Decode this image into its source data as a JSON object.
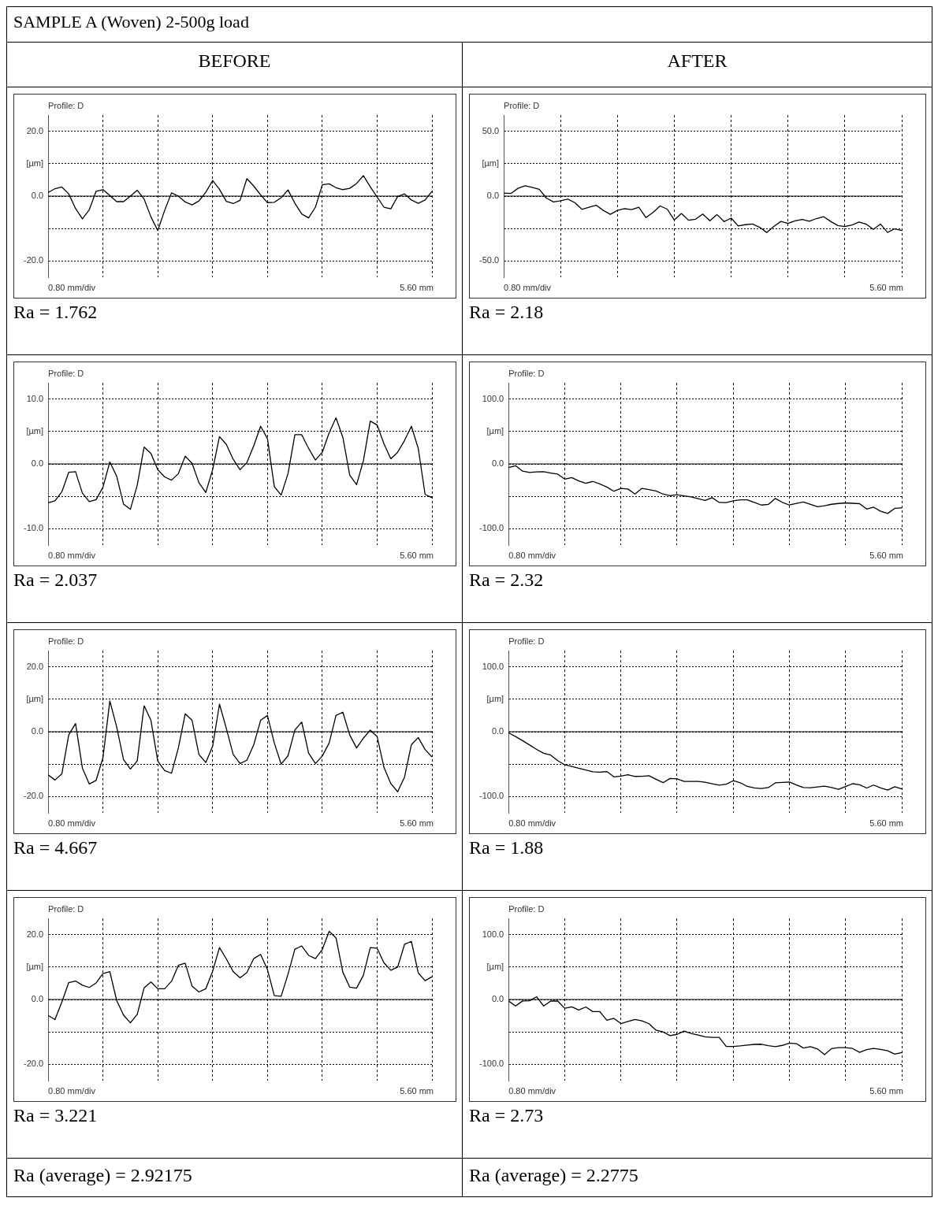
{
  "chart_data": [
    {
      "type": "other",
      "title": "SAMPLE A (Woven) 2-500g load",
      "annotations": [
        "BEFORE",
        "AFTER"
      ]
    },
    {
      "type": "line",
      "title": "Profile: D",
      "xlabel": "0.80 mm/div",
      "ylabel": "[µm]",
      "annotations": [
        "5.60 mm",
        "Ra = 1.762"
      ],
      "tick_labels": "y",
      "ylim": [
        -25,
        25
      ],
      "yticks": [
        {
          "value": 20,
          "label": "20.0"
        },
        {
          "value": 10,
          "label": null
        },
        {
          "value": 0,
          "label": "0.0"
        },
        {
          "value": -10,
          "label": null
        },
        {
          "value": -20,
          "label": "-20.0"
        }
      ],
      "grid": true,
      "ref_lines": [
        {
          "axis": "y",
          "value": 0,
          "color": "#000000"
        }
      ],
      "categories": [
        null,
        null,
        null,
        null,
        null,
        null,
        null,
        null,
        null,
        null,
        null,
        null,
        null,
        null,
        null,
        null,
        null,
        null,
        null,
        null,
        null,
        null,
        null,
        null,
        null,
        null,
        null,
        null,
        null,
        null,
        null,
        null,
        null,
        null,
        null,
        null,
        null,
        null,
        null,
        null,
        null,
        null,
        null,
        null,
        null,
        null,
        null,
        null,
        null,
        null,
        null,
        null,
        null,
        null,
        null,
        null,
        null
      ],
      "series": [
        {
          "color": "#000000",
          "values": [
            1.1,
            2.3,
            2.8,
            0.7,
            -3.8,
            -7.0,
            -4.2,
            1.5,
            2.0,
            0.2,
            -1.7,
            -1.7,
            0.0,
            1.8,
            -0.9,
            -6.4,
            -10.6,
            -4.4,
            1.0,
            0.0,
            -1.8,
            -2.7,
            -1.5,
            1.2,
            4.8,
            2.1,
            -1.6,
            -2.3,
            -1.3,
            5.4,
            3.1,
            0.4,
            -2.0,
            -1.9,
            -0.5,
            1.9,
            -2.2,
            -5.5,
            -6.7,
            -3.4,
            3.5,
            3.8,
            2.6,
            2.0,
            2.4,
            3.9,
            6.3,
            2.9,
            -0.3,
            -3.4,
            -3.9,
            -0.1,
            0.7,
            -1.2,
            -2.2,
            -1.2,
            1.5
          ]
        }
      ]
    },
    {
      "type": "line",
      "title": "Profile: D",
      "xlabel": "0.80 mm/div",
      "ylabel": "[µm]",
      "annotations": [
        "5.60 mm",
        "Ra = 2.18"
      ],
      "tick_labels": "y",
      "ylim": [
        -62.5,
        62.5
      ],
      "yticks": [
        {
          "value": 50,
          "label": "50.0"
        },
        {
          "value": 25,
          "label": null
        },
        {
          "value": 0,
          "label": "0.0"
        },
        {
          "value": -25,
          "label": null
        },
        {
          "value": -50,
          "label": "-50.0"
        }
      ],
      "grid": true,
      "ref_lines": [
        {
          "axis": "y",
          "value": 0,
          "color": "#000000"
        }
      ],
      "categories": [
        null,
        null,
        null,
        null,
        null,
        null,
        null,
        null,
        null,
        null,
        null,
        null,
        null,
        null,
        null,
        null,
        null,
        null,
        null,
        null,
        null,
        null,
        null,
        null,
        null,
        null,
        null,
        null,
        null,
        null,
        null,
        null,
        null,
        null,
        null,
        null,
        null,
        null,
        null,
        null,
        null,
        null,
        null,
        null,
        null,
        null,
        null,
        null,
        null,
        null,
        null,
        null,
        null,
        null,
        null,
        null,
        null
      ],
      "series": [
        {
          "color": "#000000",
          "values": [
            2.3,
            2.0,
            6.0,
            8.0,
            6.8,
            5.2,
            -1.5,
            -4.5,
            -3.5,
            -2.3,
            -5.0,
            -10.2,
            -8.6,
            -7.0,
            -11.0,
            -14.0,
            -11.0,
            -9.7,
            -10.4,
            -8.6,
            -16.5,
            -12.6,
            -7.6,
            -10.0,
            -18.4,
            -13.4,
            -18.6,
            -17.8,
            -13.8,
            -19.0,
            -14.2,
            -19.6,
            -17.0,
            -23.0,
            -22.0,
            -21.5,
            -24.0,
            -28.0,
            -23.4,
            -19.5,
            -21.0,
            -19.0,
            -18.0,
            -19.3,
            -17.3,
            -15.8,
            -19.5,
            -22.7,
            -23.5,
            -22.2,
            -19.9,
            -21.6,
            -25.6,
            -21.5,
            -28.0,
            -25.2,
            -26.5
          ]
        }
      ]
    },
    {
      "type": "line",
      "title": "Profile: D",
      "xlabel": "0.80 mm/div",
      "ylabel": "[µm]",
      "annotations": [
        "5.60 mm",
        "Ra = 2.037"
      ],
      "tick_labels": "y",
      "ylim": [
        -12.5,
        12.5
      ],
      "yticks": [
        {
          "value": 10,
          "label": "10.0"
        },
        {
          "value": 5,
          "label": null
        },
        {
          "value": 0,
          "label": "0.0"
        },
        {
          "value": -5,
          "label": null
        },
        {
          "value": -10,
          "label": "-10.0"
        }
      ],
      "grid": true,
      "ref_lines": [
        {
          "axis": "y",
          "value": 0,
          "color": "#000000"
        }
      ],
      "categories": [
        null,
        null,
        null,
        null,
        null,
        null,
        null,
        null,
        null,
        null,
        null,
        null,
        null,
        null,
        null,
        null,
        null,
        null,
        null,
        null,
        null,
        null,
        null,
        null,
        null,
        null,
        null,
        null,
        null,
        null,
        null,
        null,
        null,
        null,
        null,
        null,
        null,
        null,
        null,
        null,
        null,
        null,
        null,
        null,
        null,
        null,
        null,
        null,
        null,
        null,
        null,
        null,
        null,
        null,
        null,
        null,
        null
      ],
      "series": [
        {
          "color": "#000000",
          "values": [
            -6.0,
            -5.7,
            -4.3,
            -1.3,
            -1.2,
            -4.5,
            -5.8,
            -5.5,
            -3.6,
            0.3,
            -1.9,
            -6.2,
            -7.0,
            -3.3,
            2.6,
            1.6,
            -0.9,
            -2.0,
            -2.5,
            -1.5,
            1.2,
            0.1,
            -2.9,
            -4.4,
            -0.9,
            4.2,
            3.0,
            0.7,
            -0.9,
            0.2,
            2.8,
            5.8,
            3.9,
            -3.5,
            -4.8,
            -1.5,
            4.5,
            4.5,
            2.4,
            0.6,
            1.8,
            4.8,
            7.1,
            4.1,
            -1.7,
            -3.2,
            0.5,
            6.6,
            6.0,
            3.1,
            0.8,
            1.8,
            3.6,
            5.8,
            2.4,
            -4.7,
            -5.2
          ]
        }
      ]
    },
    {
      "type": "line",
      "title": "Profile: D",
      "xlabel": "0.80 mm/div",
      "ylabel": "[µm]",
      "annotations": [
        "5.60 mm",
        "Ra = 2.32"
      ],
      "tick_labels": "y",
      "ylim": [
        -125,
        125
      ],
      "yticks": [
        {
          "value": 100,
          "label": "100.0"
        },
        {
          "value": 50,
          "label": null
        },
        {
          "value": 0,
          "label": "0.0"
        },
        {
          "value": -50,
          "label": null
        },
        {
          "value": -100,
          "label": "-100.0"
        }
      ],
      "grid": true,
      "ref_lines": [
        {
          "axis": "y",
          "value": 0,
          "color": "#000000"
        }
      ],
      "categories": [
        null,
        null,
        null,
        null,
        null,
        null,
        null,
        null,
        null,
        null,
        null,
        null,
        null,
        null,
        null,
        null,
        null,
        null,
        null,
        null,
        null,
        null,
        null,
        null,
        null,
        null,
        null,
        null,
        null,
        null,
        null,
        null,
        null,
        null,
        null,
        null,
        null,
        null,
        null,
        null,
        null,
        null,
        null,
        null,
        null,
        null,
        null,
        null,
        null,
        null,
        null,
        null,
        null,
        null,
        null,
        null,
        null
      ],
      "series": [
        {
          "color": "#000000",
          "values": [
            -5.7,
            -2.8,
            -11.2,
            -13.1,
            -12.2,
            -12.1,
            -14.0,
            -15.7,
            -23.4,
            -21.0,
            -26.3,
            -29.9,
            -27.0,
            -30.8,
            -35.7,
            -42.1,
            -37.7,
            -38.7,
            -46.4,
            -37.7,
            -39.7,
            -41.7,
            -46.4,
            -48.9,
            -47.6,
            -49.3,
            -50.8,
            -53.5,
            -56.4,
            -52.0,
            -59.4,
            -59.6,
            -56.8,
            -55.4,
            -55.3,
            -59.2,
            -63.4,
            -62.4,
            -53.2,
            -59.2,
            -63.4,
            -60.7,
            -58.6,
            -62.3,
            -66.1,
            -64.4,
            -62.2,
            -61.0,
            -60.1,
            -60.7,
            -61.3,
            -69.5,
            -66.7,
            -73.0,
            -76.3,
            -68.5,
            -67.8
          ]
        }
      ]
    },
    {
      "type": "line",
      "title": "Profile: D",
      "xlabel": "0.80 mm/div",
      "ylabel": "[µm]",
      "annotations": [
        "5.60 mm",
        "Ra = 4.667"
      ],
      "tick_labels": "y",
      "ylim": [
        -25,
        25
      ],
      "yticks": [
        {
          "value": 20,
          "label": "20.0"
        },
        {
          "value": 10,
          "label": null
        },
        {
          "value": 0,
          "label": "0.0"
        },
        {
          "value": -10,
          "label": null
        },
        {
          "value": -20,
          "label": "-20.0"
        }
      ],
      "grid": true,
      "ref_lines": [
        {
          "axis": "y",
          "value": 0,
          "color": "#000000"
        }
      ],
      "categories": [
        null,
        null,
        null,
        null,
        null,
        null,
        null,
        null,
        null,
        null,
        null,
        null,
        null,
        null,
        null,
        null,
        null,
        null,
        null,
        null,
        null,
        null,
        null,
        null,
        null,
        null,
        null,
        null,
        null,
        null,
        null,
        null,
        null,
        null,
        null,
        null,
        null,
        null,
        null,
        null,
        null,
        null,
        null,
        null,
        null,
        null,
        null,
        null,
        null,
        null,
        null,
        null,
        null,
        null,
        null,
        null,
        null
      ],
      "series": [
        {
          "color": "#000000",
          "values": [
            -13.3,
            -14.9,
            -13.0,
            -1.0,
            2.5,
            -11.2,
            -16.1,
            -15.0,
            -8.0,
            9.5,
            1.5,
            -8.6,
            -11.5,
            -9.0,
            8.0,
            3.5,
            -9.1,
            -12.0,
            -12.8,
            -5.0,
            5.5,
            3.5,
            -7.0,
            -9.5,
            -4.5,
            8.5,
            1.0,
            -7.0,
            -9.8,
            -8.8,
            -4.0,
            3.5,
            5.0,
            -3.5,
            -10.0,
            -7.4,
            0.5,
            3.0,
            -6.6,
            -9.8,
            -7.5,
            -3.5,
            5.0,
            6.0,
            -1.0,
            -5.0,
            -2.0,
            0.5,
            -1.5,
            -11.0,
            -16.0,
            -18.5,
            -14.0,
            -4.0,
            -1.8,
            -5.5,
            -7.8
          ]
        }
      ]
    },
    {
      "type": "line",
      "title": "Profile: D",
      "xlabel": "0.80 mm/div",
      "ylabel": "[µm]",
      "annotations": [
        "5.60 mm",
        "Ra = 1.88"
      ],
      "tick_labels": "y",
      "ylim": [
        -125,
        125
      ],
      "yticks": [
        {
          "value": 100,
          "label": "100.0"
        },
        {
          "value": 50,
          "label": null
        },
        {
          "value": 0,
          "label": "0.0"
        },
        {
          "value": -50,
          "label": null
        },
        {
          "value": -100,
          "label": "-100.0"
        }
      ],
      "grid": true,
      "ref_lines": [
        {
          "axis": "y",
          "value": 0,
          "color": "#000000"
        }
      ],
      "categories": [
        null,
        null,
        null,
        null,
        null,
        null,
        null,
        null,
        null,
        null,
        null,
        null,
        null,
        null,
        null,
        null,
        null,
        null,
        null,
        null,
        null,
        null,
        null,
        null,
        null,
        null,
        null,
        null,
        null,
        null,
        null,
        null,
        null,
        null,
        null,
        null,
        null,
        null,
        null,
        null,
        null,
        null,
        null,
        null,
        null,
        null,
        null,
        null,
        null,
        null,
        null,
        null,
        null,
        null,
        null,
        null,
        null
      ],
      "series": [
        {
          "color": "#000000",
          "values": [
            -1.8,
            -7.5,
            -13.8,
            -20.5,
            -27.3,
            -33.3,
            -36.0,
            -44.6,
            -50.9,
            -53.6,
            -56.3,
            -59.0,
            -61.7,
            -62.3,
            -61.4,
            -69.6,
            -68.3,
            -66.2,
            -68.9,
            -68.7,
            -67.9,
            -73.2,
            -78.5,
            -72.0,
            -72.6,
            -76.7,
            -76.7,
            -76.7,
            -77.8,
            -80.3,
            -82.5,
            -80.9,
            -75.5,
            -78.6,
            -84.3,
            -86.5,
            -87.5,
            -86.1,
            -78.8,
            -78.2,
            -77.6,
            -82.0,
            -86.1,
            -86.4,
            -85.1,
            -83.9,
            -85.9,
            -88.8,
            -84.4,
            -80.1,
            -81.8,
            -86.8,
            -82.2,
            -86.6,
            -89.9,
            -84.8,
            -88.2
          ]
        }
      ]
    },
    {
      "type": "line",
      "title": "Profile: D",
      "xlabel": "0.80 mm/div",
      "ylabel": "[µm]",
      "annotations": [
        "5.60 mm",
        "Ra = 3.221"
      ],
      "tick_labels": "y",
      "ylim": [
        -25,
        25
      ],
      "yticks": [
        {
          "value": 20,
          "label": "20.0"
        },
        {
          "value": 10,
          "label": null
        },
        {
          "value": 0,
          "label": "0.0"
        },
        {
          "value": -10,
          "label": null
        },
        {
          "value": -20,
          "label": "-20.0"
        }
      ],
      "grid": true,
      "ref_lines": [
        {
          "axis": "y",
          "value": 0,
          "color": "#000000"
        }
      ],
      "categories": [
        null,
        null,
        null,
        null,
        null,
        null,
        null,
        null,
        null,
        null,
        null,
        null,
        null,
        null,
        null,
        null,
        null,
        null,
        null,
        null,
        null,
        null,
        null,
        null,
        null,
        null,
        null,
        null,
        null,
        null,
        null,
        null,
        null,
        null,
        null,
        null,
        null,
        null,
        null,
        null,
        null,
        null,
        null,
        null,
        null,
        null,
        null,
        null,
        null,
        null,
        null,
        null,
        null,
        null,
        null,
        null,
        null
      ],
      "series": [
        {
          "color": "#000000",
          "values": [
            -4.9,
            -6.2,
            -0.8,
            5.2,
            5.7,
            4.4,
            3.7,
            5.1,
            8.0,
            8.6,
            -0.3,
            -4.8,
            -7.2,
            -4.6,
            3.6,
            5.4,
            3.3,
            3.3,
            5.6,
            10.5,
            11.2,
            4.1,
            2.3,
            3.3,
            8.7,
            16.0,
            12.5,
            8.6,
            6.7,
            8.3,
            12.6,
            13.9,
            9.2,
            1.2,
            1.0,
            7.8,
            15.5,
            16.5,
            13.6,
            12.6,
            15.4,
            21.0,
            19.0,
            8.4,
            3.8,
            3.5,
            7.5,
            16.0,
            15.8,
            11.3,
            9.0,
            10.0,
            17.0,
            17.9,
            8.2,
            5.8,
            7.0
          ]
        }
      ]
    },
    {
      "type": "line",
      "title": "Profile: D",
      "xlabel": "0.80 mm/div",
      "ylabel": "[µm]",
      "annotations": [
        "5.60 mm",
        "Ra = 2.73"
      ],
      "tick_labels": "y",
      "ylim": [
        -125,
        125
      ],
      "yticks": [
        {
          "value": 100,
          "label": "100.0"
        },
        {
          "value": 50,
          "label": null
        },
        {
          "value": 0,
          "label": "0.0"
        },
        {
          "value": -50,
          "label": null
        },
        {
          "value": -100,
          "label": "-100.0"
        }
      ],
      "grid": true,
      "ref_lines": [
        {
          "axis": "y",
          "value": 0,
          "color": "#000000"
        }
      ],
      "categories": [
        null,
        null,
        null,
        null,
        null,
        null,
        null,
        null,
        null,
        null,
        null,
        null,
        null,
        null,
        null,
        null,
        null,
        null,
        null,
        null,
        null,
        null,
        null,
        null,
        null,
        null,
        null,
        null,
        null,
        null,
        null,
        null,
        null,
        null,
        null,
        null,
        null,
        null,
        null,
        null,
        null,
        null,
        null,
        null,
        null,
        null,
        null,
        null,
        null,
        null,
        null,
        null,
        null,
        null,
        null,
        null,
        null
      ],
      "series": [
        {
          "color": "#000000",
          "values": [
            -2.3,
            -9.9,
            -2.3,
            -2.0,
            4.2,
            -10.0,
            -2.4,
            -2.4,
            -13.5,
            -11.3,
            -16.3,
            -11.5,
            -18.7,
            -18.7,
            -32.1,
            -29.0,
            -37.1,
            -33.9,
            -30.7,
            -32.8,
            -37.3,
            -47.3,
            -50.0,
            -55.6,
            -53.7,
            -48.6,
            -52.4,
            -54.8,
            -57.6,
            -58.4,
            -58.4,
            -72.4,
            -72.4,
            -71.5,
            -70.3,
            -69.2,
            -68.9,
            -71.2,
            -72.6,
            -70.7,
            -67.3,
            -68.0,
            -74.9,
            -72.6,
            -76.2,
            -84.9,
            -75.7,
            -74.1,
            -74.2,
            -75.5,
            -81.4,
            -77.1,
            -75.4,
            -76.8,
            -79.1,
            -84.1,
            -81.8
          ]
        }
      ]
    },
    {
      "type": "other",
      "annotations": [
        "Ra (average) = 2.92175",
        "Ra (average) = 2.2775"
      ]
    }
  ]
}
